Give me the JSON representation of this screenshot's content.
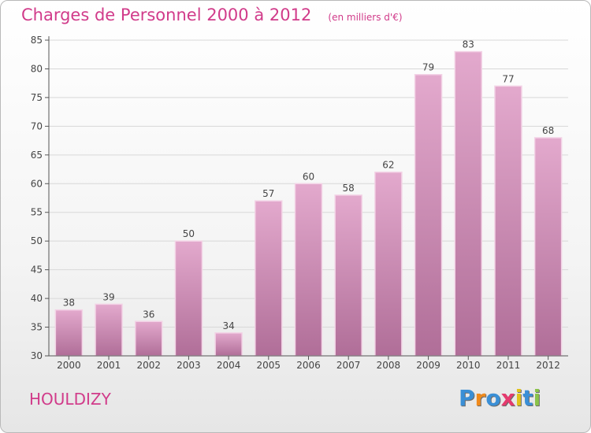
{
  "title": "Charges de Personnel 2000 à 2012",
  "subtitle": "(en milliers d'€)",
  "commune": "HOULDIZY",
  "brand": {
    "text": "Proxiti",
    "letters": [
      {
        "ch": "P",
        "color": "#3a8fd6"
      },
      {
        "ch": "r",
        "color": "#f08a1c"
      },
      {
        "ch": "o",
        "color": "#3a8fd6"
      },
      {
        "ch": "x",
        "color": "#e53a6e"
      },
      {
        "ch": "i",
        "color": "#e0c21c"
      },
      {
        "ch": "t",
        "color": "#3a8fd6"
      },
      {
        "ch": "i",
        "color": "#8bc34a"
      }
    ]
  },
  "colors": {
    "bar_top": "#e3a9cd",
    "bar_bottom": "#b06e98",
    "bar_edge": "#f3d3e6",
    "grid": "#d8d8d8",
    "axis": "#555555",
    "accent": "#d13b8a"
  },
  "chart_data": {
    "type": "bar",
    "title": "Charges de Personnel 2000 à 2012",
    "subtitle": "(en milliers d'€)",
    "categories": [
      "2000",
      "2001",
      "2002",
      "2003",
      "2004",
      "2005",
      "2006",
      "2007",
      "2008",
      "2009",
      "2010",
      "2011",
      "2012"
    ],
    "values": [
      38,
      39,
      36,
      50,
      34,
      57,
      60,
      58,
      62,
      79,
      83,
      77,
      68
    ],
    "ylim": [
      30,
      85
    ],
    "yticks": [
      30,
      35,
      40,
      45,
      50,
      55,
      60,
      65,
      70,
      75,
      80,
      85
    ],
    "xlabel": "",
    "ylabel": "",
    "grid": true,
    "legend": "none"
  }
}
